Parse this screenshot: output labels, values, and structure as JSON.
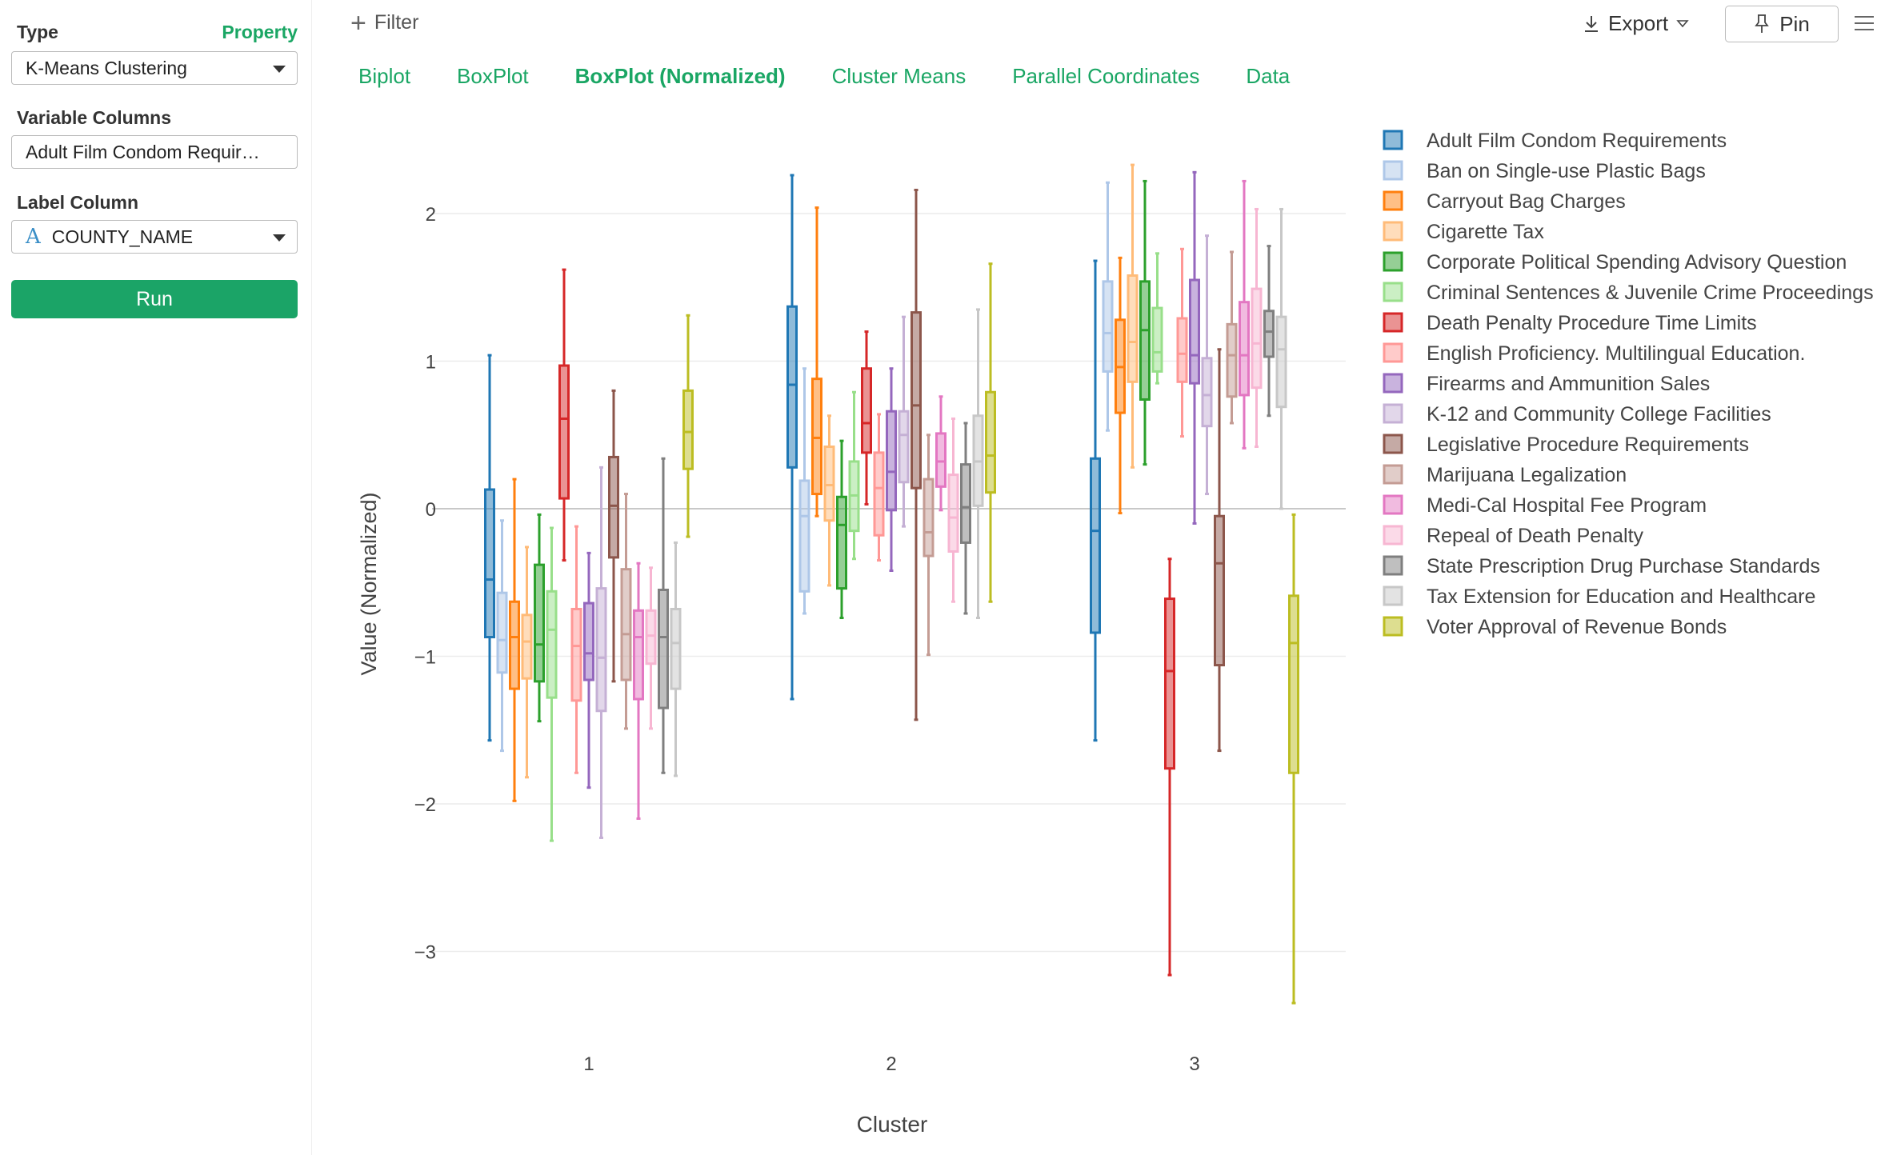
{
  "sidebar": {
    "type_label": "Type",
    "property_link": "Property",
    "type_value": "K-Means Clustering",
    "variable_columns_label": "Variable Columns",
    "variable_columns_value": "Adult Film Condom Requir…",
    "label_column_label": "Label Column",
    "label_column_type_icon": "A",
    "label_column_value": "COUNTY_NAME",
    "run_label": "Run"
  },
  "toolbar": {
    "filter_label": "Filter",
    "export_label": "Export",
    "pin_label": "Pin"
  },
  "tabs": [
    {
      "label": "Biplot",
      "active": false
    },
    {
      "label": "BoxPlot",
      "active": false
    },
    {
      "label": "BoxPlot (Normalized)",
      "active": true
    },
    {
      "label": "Cluster Means",
      "active": false
    },
    {
      "label": "Parallel Coordinates",
      "active": false
    },
    {
      "label": "Data",
      "active": false
    }
  ],
  "chart_data": {
    "type": "box",
    "xlabel": "Cluster",
    "ylabel": "Value (Normalized)",
    "categories": [
      "1",
      "2",
      "3"
    ],
    "yticks": [
      2,
      1,
      0,
      -1,
      -2,
      -3
    ],
    "ytick_labels": [
      "2",
      "1",
      "0",
      "−1",
      "−2",
      "−3"
    ],
    "ylim": [
      -3.6,
      2.4
    ],
    "grid": true,
    "legend_position": "right",
    "series": [
      {
        "name": "Adult Film Condom Requirements",
        "color": "#1f77b4",
        "boxes": [
          [
            -1.57,
            -0.87,
            -0.48,
            0.13,
            1.04
          ],
          [
            -1.29,
            0.28,
            0.84,
            1.37,
            2.26
          ],
          [
            -1.57,
            -0.84,
            -0.15,
            0.34,
            1.68
          ]
        ]
      },
      {
        "name": "Ban on Single-use Plastic Bags",
        "color": "#aec7e8",
        "boxes": [
          [
            -1.64,
            -1.11,
            -0.89,
            -0.57,
            -0.08
          ],
          [
            -0.71,
            -0.56,
            -0.05,
            0.19,
            0.95
          ],
          [
            0.53,
            0.93,
            1.19,
            1.54,
            2.21
          ]
        ]
      },
      {
        "name": "Carryout Bag Charges",
        "color": "#ff7f0e",
        "boxes": [
          [
            -1.98,
            -1.22,
            -0.87,
            -0.63,
            0.2
          ],
          [
            -0.05,
            0.1,
            0.48,
            0.88,
            2.04
          ],
          [
            -0.03,
            0.65,
            0.96,
            1.28,
            1.7
          ]
        ]
      },
      {
        "name": "Cigarette Tax",
        "color": "#ffbb78",
        "boxes": [
          [
            -1.82,
            -1.15,
            -0.9,
            -0.72,
            -0.26
          ],
          [
            -0.52,
            -0.08,
            0.16,
            0.42,
            0.63
          ],
          [
            0.28,
            0.86,
            1.13,
            1.58,
            2.33
          ]
        ]
      },
      {
        "name": "Corporate Political Spending Advisory Question",
        "color": "#2ca02c",
        "boxes": [
          [
            -1.44,
            -1.17,
            -0.92,
            -0.38,
            -0.04
          ],
          [
            -0.74,
            -0.54,
            -0.11,
            0.08,
            0.46
          ],
          [
            0.3,
            0.74,
            1.21,
            1.54,
            2.22
          ]
        ]
      },
      {
        "name": "Criminal Sentences & Juvenile Crime Proceedings",
        "color": "#98df8a",
        "boxes": [
          [
            -2.25,
            -1.28,
            -0.82,
            -0.56,
            -0.13
          ],
          [
            -0.34,
            -0.15,
            0.09,
            0.32,
            0.79
          ],
          [
            0.85,
            0.93,
            1.06,
            1.36,
            1.73
          ]
        ]
      },
      {
        "name": "Death Penalty Procedure Time Limits",
        "color": "#d62728",
        "boxes": [
          [
            -0.35,
            0.07,
            0.61,
            0.97,
            1.62
          ],
          [
            0.03,
            0.38,
            0.58,
            0.95,
            1.2
          ],
          [
            -3.16,
            -1.76,
            -1.1,
            -0.61,
            -0.34
          ]
        ]
      },
      {
        "name": "English Proficiency. Multilingual Education.",
        "color": "#ff9896",
        "boxes": [
          [
            -1.79,
            -1.3,
            -0.93,
            -0.68,
            -0.12
          ],
          [
            -0.35,
            -0.18,
            0.14,
            0.38,
            0.64
          ],
          [
            0.49,
            0.86,
            1.05,
            1.29,
            1.76
          ]
        ]
      },
      {
        "name": "Firearms and Ammunition Sales",
        "color": "#9467bd",
        "boxes": [
          [
            -1.89,
            -1.16,
            -0.98,
            -0.64,
            -0.3
          ],
          [
            -0.42,
            -0.01,
            0.25,
            0.66,
            0.95
          ],
          [
            -0.1,
            0.85,
            1.04,
            1.55,
            2.28
          ]
        ]
      },
      {
        "name": "K-12 and Community College Facilities",
        "color": "#c5b0d5",
        "boxes": [
          [
            -2.23,
            -1.37,
            -1.01,
            -0.54,
            0.28
          ],
          [
            -0.12,
            0.18,
            0.5,
            0.66,
            1.3
          ],
          [
            0.1,
            0.56,
            0.77,
            1.02,
            1.85
          ]
        ]
      },
      {
        "name": "Legislative Procedure Requirements",
        "color": "#8c564b",
        "boxes": [
          [
            -1.17,
            -0.33,
            0.02,
            0.35,
            0.8
          ],
          [
            -1.43,
            0.14,
            0.7,
            1.33,
            2.16
          ],
          [
            -1.64,
            -1.06,
            -0.37,
            -0.05,
            1.08
          ]
        ]
      },
      {
        "name": "Marijuana Legalization",
        "color": "#c49c94",
        "boxes": [
          [
            -1.49,
            -1.16,
            -0.85,
            -0.41,
            0.1
          ],
          [
            -0.99,
            -0.32,
            -0.16,
            0.2,
            0.5
          ],
          [
            0.58,
            0.76,
            1.04,
            1.25,
            1.74
          ]
        ]
      },
      {
        "name": "Medi-Cal Hospital Fee Program",
        "color": "#e377c2",
        "boxes": [
          [
            -2.1,
            -1.29,
            -0.87,
            -0.69,
            -0.37
          ],
          [
            -0.01,
            0.15,
            0.32,
            0.51,
            0.76
          ],
          [
            0.41,
            0.77,
            1.04,
            1.4,
            2.22
          ]
        ]
      },
      {
        "name": "Repeal of Death Penalty",
        "color": "#f7b6d2",
        "boxes": [
          [
            -1.49,
            -1.05,
            -0.86,
            -0.69,
            -0.4
          ],
          [
            -0.63,
            -0.29,
            -0.06,
            0.23,
            0.61
          ],
          [
            0.42,
            0.82,
            1.12,
            1.49,
            2.03
          ]
        ]
      },
      {
        "name": "State Prescription Drug Purchase Standards",
        "color": "#7f7f7f",
        "boxes": [
          [
            -1.79,
            -1.35,
            -0.87,
            -0.55,
            0.34
          ],
          [
            -0.71,
            -0.23,
            0.01,
            0.3,
            0.58
          ],
          [
            0.63,
            1.03,
            1.2,
            1.34,
            1.78
          ]
        ]
      },
      {
        "name": "Tax Extension for Education and Healthcare",
        "color": "#c7c7c7",
        "boxes": [
          [
            -1.81,
            -1.22,
            -0.91,
            -0.68,
            -0.23
          ],
          [
            -0.74,
            0.02,
            0.32,
            0.63,
            1.35
          ],
          [
            0.0,
            0.69,
            1.08,
            1.3,
            2.03
          ]
        ]
      },
      {
        "name": "Voter Approval of Revenue Bonds",
        "color": "#bcbd22",
        "boxes": [
          [
            -0.19,
            0.27,
            0.52,
            0.8,
            1.31
          ],
          [
            -0.63,
            0.11,
            0.36,
            0.79,
            1.66
          ],
          [
            -3.35,
            -1.79,
            -0.91,
            -0.59,
            -0.04
          ]
        ]
      }
    ]
  }
}
